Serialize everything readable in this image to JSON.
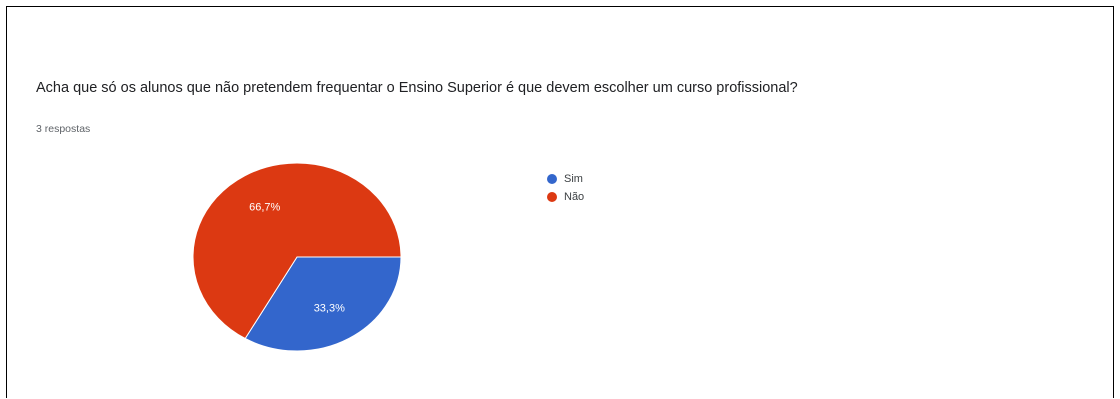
{
  "question": {
    "title": "Acha que só os alunos que não pretendem frequentar o Ensino Superior é que devem escolher um curso profissional?",
    "responses_label": "3 respostas"
  },
  "chart_data": {
    "type": "pie",
    "categories": [
      "Sim",
      "Não"
    ],
    "values": [
      33.3,
      66.7
    ],
    "counts": [
      1,
      2
    ],
    "data_labels": [
      "33,3%",
      "66,7%"
    ],
    "colors": [
      "#3366cc",
      "#dc3912"
    ],
    "legend_position": "right"
  }
}
